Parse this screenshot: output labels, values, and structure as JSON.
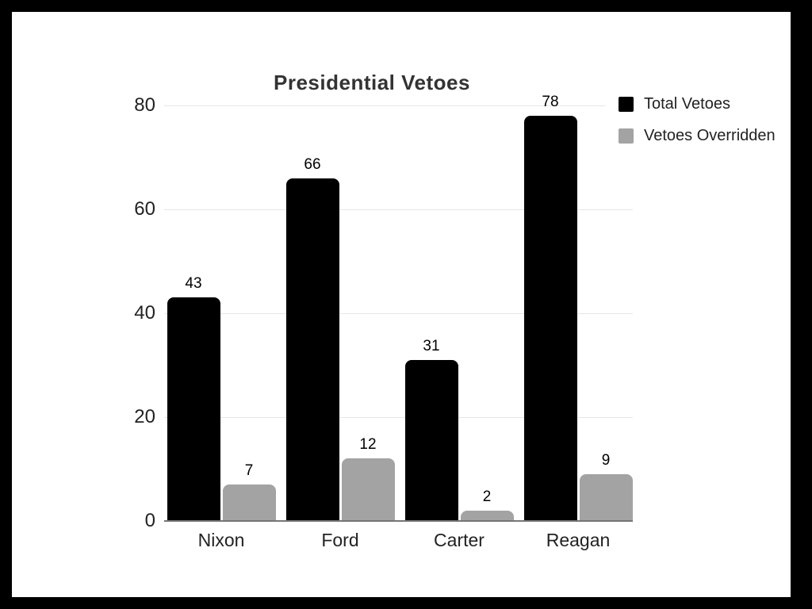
{
  "frame": {
    "border_color": "#000000",
    "panel_background": "#ffffff"
  },
  "chart_data": {
    "type": "bar",
    "title": "Presidential Vetoes",
    "categories": [
      "Nixon",
      "Ford",
      "Carter",
      "Reagan"
    ],
    "series": [
      {
        "name": "Total Vetoes",
        "color": "#000000",
        "values": [
          43,
          66,
          31,
          78
        ]
      },
      {
        "name": "Vetoes Overridden",
        "color": "#a3a3a3",
        "values": [
          7,
          12,
          2,
          9
        ]
      }
    ],
    "y_ticks": [
      0,
      20,
      40,
      60,
      80
    ],
    "ylim": [
      0,
      80
    ],
    "xlabel": "",
    "ylabel": "",
    "grid": true,
    "gridline_color": "#e6e6e6",
    "axis_line_color": "#757575",
    "data_labels": true,
    "legend_position": "top-right"
  }
}
